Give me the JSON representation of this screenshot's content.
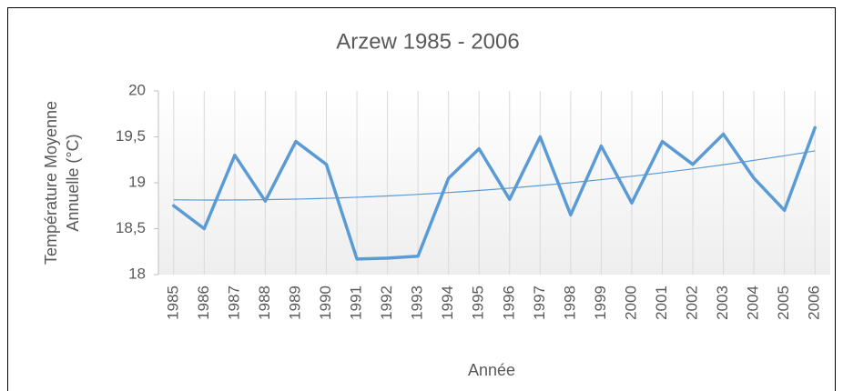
{
  "chart_data": {
    "type": "line",
    "title": "Arzew 1985 - 2006",
    "xlabel": "Année",
    "ylabel": [
      "Température Moyenne",
      "Annuelle (°C)"
    ],
    "categories": [
      "1985",
      "1986",
      "1987",
      "1988",
      "1989",
      "1990",
      "1991",
      "1992",
      "1993",
      "1994",
      "1995",
      "1996",
      "1997",
      "1998",
      "1999",
      "2000",
      "2001",
      "2002",
      "2003",
      "2004",
      "2005",
      "2006"
    ],
    "values": [
      18.75,
      18.5,
      19.3,
      18.8,
      19.45,
      19.2,
      18.17,
      18.18,
      18.2,
      19.05,
      19.37,
      18.82,
      19.5,
      18.65,
      19.4,
      18.78,
      19.45,
      19.2,
      19.53,
      19.05,
      18.7,
      19.6
    ],
    "color": "#5b9bd5",
    "trendline": {
      "order": 2,
      "color": "#5b9bd5"
    },
    "ylim": [
      18,
      20
    ],
    "yticks": [
      18,
      {
        "value": 18.5,
        "label": "18,5"
      },
      19,
      {
        "value": 19.5,
        "label": "19,5"
      },
      20
    ],
    "grid": "x"
  }
}
